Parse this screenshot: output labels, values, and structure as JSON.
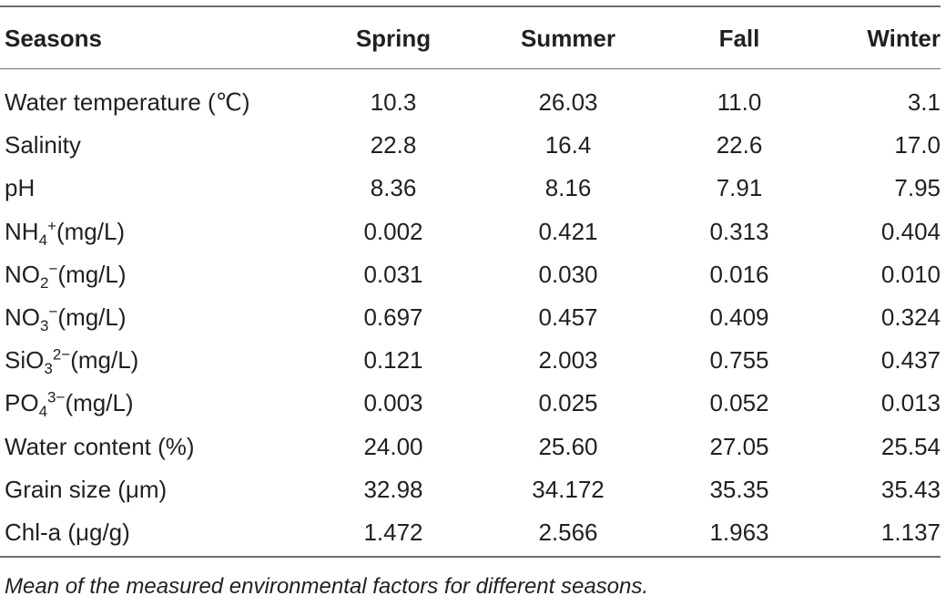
{
  "table": {
    "headers": [
      "Seasons",
      "Spring",
      "Summer",
      "Fall",
      "Winter"
    ],
    "rows": [
      {
        "label": "Water temperature (℃)",
        "values": [
          "10.3",
          "26.03",
          "11.0",
          "3.1"
        ]
      },
      {
        "label": "Salinity",
        "values": [
          "22.8",
          "16.4",
          "22.6",
          "17.0"
        ]
      },
      {
        "label": "pH",
        "values": [
          "8.36",
          "8.16",
          "7.91",
          "7.95"
        ]
      },
      {
        "label": "NH4+(mg/L)",
        "label_parts": {
          "base": "NH",
          "sub": "4",
          "sup": "+",
          "unit": "(mg/L)"
        },
        "values": [
          "0.002",
          "0.421",
          "0.313",
          "0.404"
        ]
      },
      {
        "label": "NO2−(mg/L)",
        "label_parts": {
          "base": "NO",
          "sub": "2",
          "sup": "−",
          "unit": "(mg/L)"
        },
        "values": [
          "0.031",
          "0.030",
          "0.016",
          "0.010"
        ]
      },
      {
        "label": "NO3−(mg/L)",
        "label_parts": {
          "base": "NO",
          "sub": "3",
          "sup": "−",
          "unit": "(mg/L)"
        },
        "values": [
          "0.697",
          "0.457",
          "0.409",
          "0.324"
        ]
      },
      {
        "label": "SiO32−(mg/L)",
        "label_parts": {
          "base": "SiO",
          "sub": "3",
          "sup": "2−",
          "unit": "(mg/L)"
        },
        "values": [
          "0.121",
          "2.003",
          "0.755",
          "0.437"
        ]
      },
      {
        "label": "PO43−(mg/L)",
        "label_parts": {
          "base": "PO",
          "sub": "4",
          "sup": "3−",
          "unit": "(mg/L)"
        },
        "values": [
          "0.003",
          "0.025",
          "0.052",
          "0.013"
        ]
      },
      {
        "label": "Water content (%)",
        "values": [
          "24.00",
          "25.60",
          "27.05",
          "25.54"
        ]
      },
      {
        "label": "Grain size (μm)",
        "values": [
          "32.98",
          "34.172",
          "35.35",
          "35.43"
        ]
      },
      {
        "label": "Chl-a (μg/g)",
        "values": [
          "1.472",
          "2.566",
          "1.963",
          "1.137"
        ]
      }
    ]
  },
  "caption": "Mean of the measured environmental factors for different seasons."
}
